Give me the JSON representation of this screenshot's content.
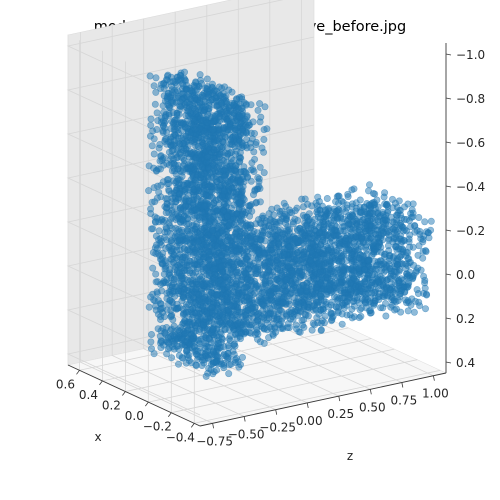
{
  "chart_data": {
    "type": "scatter",
    "projection": "3d",
    "title": "models/hook/Hook_bar/concave_before.jpg",
    "xlabel": "x",
    "ylabel": "",
    "zlabel": "z",
    "x_ticks": [
      "0.6",
      "0.4",
      "0.2",
      "0.0",
      "−0.2",
      "−0.4"
    ],
    "z_ticks": [
      "−0.75",
      "−0.50",
      "−0.25",
      "0.00",
      "0.25",
      "0.50",
      "0.75",
      "1.00"
    ],
    "y_ticks": [
      "−1.0",
      "−0.8",
      "−0.6",
      "−0.4",
      "−0.2",
      "0.0",
      "0.2",
      "0.4"
    ],
    "point_color": "#1f77b4",
    "point_alpha": 0.5,
    "grid": true,
    "pane_color": "#f2f2f2",
    "series": [
      {
        "parts": [
          {
            "part": "vertical-bar",
            "x": [
              -0.45,
              0.1
            ],
            "z": [
              -0.78,
              -0.45
            ],
            "y": [
              -1.0,
              0.25
            ],
            "density": 1900
          },
          {
            "part": "hook-side",
            "x": [
              -0.45,
              0.1
            ],
            "z": [
              -0.55,
              -0.3
            ],
            "y": [
              -0.95,
              -0.35
            ],
            "density": 500
          },
          {
            "part": "horizontal-bar",
            "x": [
              -0.45,
              0.1
            ],
            "z": [
              -0.45,
              1.0
            ],
            "y": [
              -0.3,
              0.15
            ],
            "density": 2400
          }
        ]
      }
    ]
  }
}
